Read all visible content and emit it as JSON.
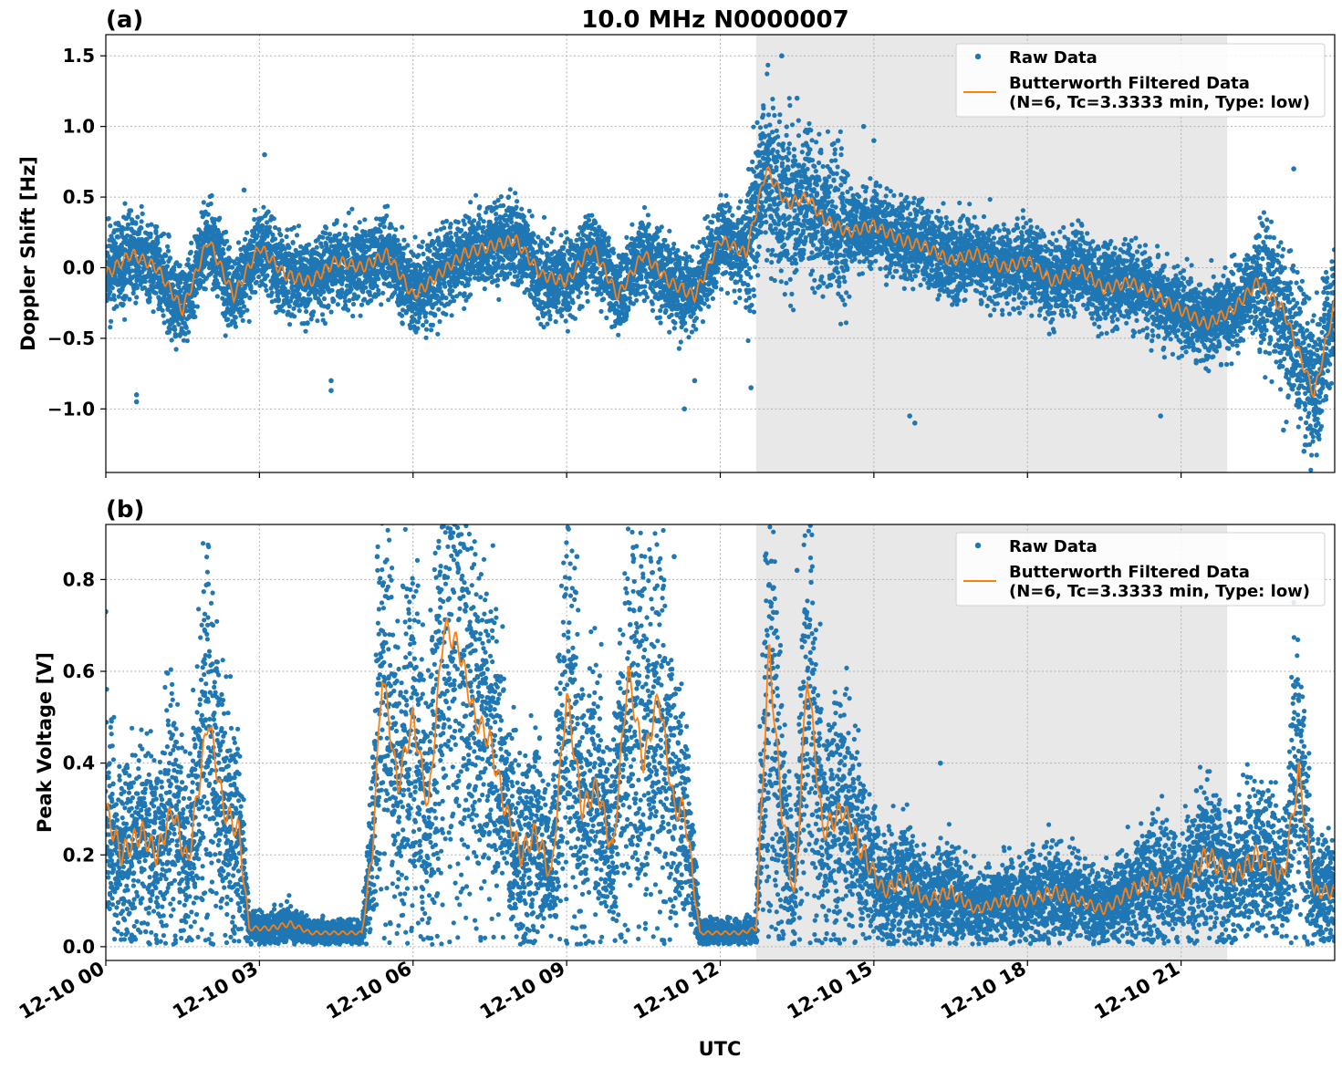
{
  "figure": {
    "title": "10.0 MHz N0000007",
    "xlabel": "UTC",
    "x_tick_labels": [
      "12-10 00",
      "12-10 03",
      "12-10 06",
      "12-10 09",
      "12-10 12",
      "12-10 15",
      "12-10 18",
      "12-10 21"
    ],
    "x_range_hours": [
      0,
      24
    ],
    "shaded_span_hours": [
      12.7,
      21.9
    ],
    "colors": {
      "raw": "#1f77b4",
      "filtered": "#ff7f0e",
      "shade": "#e8e8e8"
    }
  },
  "legend": {
    "raw_label": "Raw Data",
    "filtered_label_line1": "Butterworth Filtered Data",
    "filtered_label_line2": "(N=6, Tc=3.3333 min, Type: low)"
  },
  "chart_data": [
    {
      "panel": "(a)",
      "type": "scatter",
      "ylabel": "Doppler Shift [Hz]",
      "ylim": [
        -1.45,
        1.65
      ],
      "y_ticks": [
        1.5,
        1.0,
        0.5,
        0.0,
        -0.5,
        -1.0
      ],
      "y_tick_labels": [
        "1.5",
        "1.0",
        "0.5",
        "0.0",
        "−0.5",
        "−1.0"
      ],
      "grid": true,
      "legend_position": "top-right",
      "series": [
        {
          "name": "Butterworth Filtered Data",
          "x_hours": [
            0,
            0.5,
            1.0,
            1.5,
            2.0,
            2.5,
            3.0,
            3.5,
            4.0,
            4.5,
            5.0,
            5.5,
            6.0,
            6.5,
            7.0,
            7.5,
            8.0,
            8.5,
            9.0,
            9.5,
            10.0,
            10.5,
            11.0,
            11.5,
            12.0,
            12.5,
            12.9,
            13.3,
            13.7,
            14.0,
            14.5,
            15.0,
            15.5,
            16.0,
            16.5,
            17.0,
            17.5,
            18.0,
            18.5,
            19.0,
            19.5,
            20.0,
            20.5,
            21.0,
            21.5,
            22.0,
            22.5,
            23.0,
            23.3,
            23.6,
            24.0
          ],
          "y": [
            -0.05,
            0.1,
            0.0,
            -0.3,
            0.2,
            -0.2,
            0.15,
            -0.05,
            -0.1,
            0.05,
            0.0,
            0.1,
            -0.2,
            -0.05,
            0.1,
            0.15,
            0.2,
            -0.05,
            -0.1,
            0.15,
            -0.2,
            0.1,
            -0.1,
            -0.2,
            0.2,
            0.1,
            0.7,
            0.45,
            0.5,
            0.35,
            0.25,
            0.3,
            0.2,
            0.15,
            0.05,
            0.1,
            0.0,
            0.05,
            -0.1,
            0.0,
            -0.15,
            -0.1,
            -0.2,
            -0.3,
            -0.4,
            -0.3,
            -0.1,
            -0.3,
            -0.6,
            -0.9,
            -0.25
          ]
        },
        {
          "name": "Raw Data",
          "x_hours": [
            0.6,
            0.6,
            2.7,
            3.1,
            4.4,
            4.4,
            11.3,
            11.5,
            12.6,
            13.2,
            13.5,
            14.3,
            14.8,
            15.0,
            15.7,
            15.8,
            20.6,
            23.2,
            23.4,
            23.0
          ],
          "y": [
            -0.9,
            -0.95,
            0.55,
            0.8,
            -0.8,
            -0.87,
            -1.0,
            -0.8,
            -0.85,
            1.5,
            1.2,
            0.9,
            1.0,
            0.9,
            -1.05,
            -1.1,
            -1.05,
            0.7,
            -1.3,
            -1.15
          ]
        }
      ]
    },
    {
      "panel": "(b)",
      "type": "scatter",
      "ylabel": "Peak Voltage [V]",
      "ylim": [
        -0.03,
        0.92
      ],
      "y_ticks": [
        0.8,
        0.6,
        0.4,
        0.2,
        0.0
      ],
      "y_tick_labels": [
        "0.8",
        "0.6",
        "0.4",
        "0.2",
        "0.0"
      ],
      "grid": true,
      "legend_position": "top-right",
      "series": [
        {
          "name": "Butterworth Filtered Data",
          "x_hours": [
            0,
            0.3,
            0.7,
            1.0,
            1.3,
            1.6,
            2.0,
            2.3,
            2.6,
            2.8,
            3.2,
            3.6,
            4.0,
            4.5,
            5.0,
            5.2,
            5.4,
            5.7,
            6.0,
            6.3,
            6.6,
            6.9,
            7.2,
            7.5,
            7.8,
            8.1,
            8.4,
            8.7,
            9.0,
            9.3,
            9.6,
            9.9,
            10.2,
            10.5,
            10.8,
            11.1,
            11.3,
            11.6,
            12.0,
            12.4,
            12.7,
            12.95,
            13.2,
            13.45,
            13.7,
            14.0,
            14.4,
            14.8,
            15.2,
            15.6,
            16.0,
            16.5,
            17.0,
            17.5,
            18.0,
            18.5,
            19.0,
            19.5,
            20.0,
            20.5,
            21.0,
            21.5,
            22.0,
            22.5,
            23.0,
            23.3,
            23.6,
            24.0
          ],
          "y": [
            0.3,
            0.2,
            0.25,
            0.2,
            0.3,
            0.18,
            0.5,
            0.3,
            0.25,
            0.04,
            0.04,
            0.05,
            0.03,
            0.03,
            0.03,
            0.2,
            0.6,
            0.35,
            0.5,
            0.3,
            0.7,
            0.65,
            0.5,
            0.45,
            0.3,
            0.2,
            0.25,
            0.15,
            0.55,
            0.3,
            0.35,
            0.2,
            0.6,
            0.4,
            0.55,
            0.3,
            0.3,
            0.03,
            0.03,
            0.03,
            0.04,
            0.65,
            0.3,
            0.1,
            0.6,
            0.25,
            0.3,
            0.2,
            0.12,
            0.15,
            0.1,
            0.12,
            0.08,
            0.1,
            0.1,
            0.12,
            0.1,
            0.08,
            0.12,
            0.15,
            0.12,
            0.2,
            0.15,
            0.2,
            0.15,
            0.38,
            0.12,
            0.12
          ]
        },
        {
          "name": "Raw Data",
          "x_hours": [
            0.0,
            2.0,
            5.3,
            6.5,
            7.0,
            9.2,
            10.3,
            11.1,
            13.0,
            13.5,
            16.3,
            21.3,
            23.2,
            22.7
          ],
          "y": [
            0.73,
            0.79,
            0.85,
            0.87,
            0.87,
            0.85,
            0.87,
            0.85,
            0.84,
            0.82,
            0.4,
            0.34,
            0.75,
            0.34
          ]
        }
      ]
    }
  ]
}
